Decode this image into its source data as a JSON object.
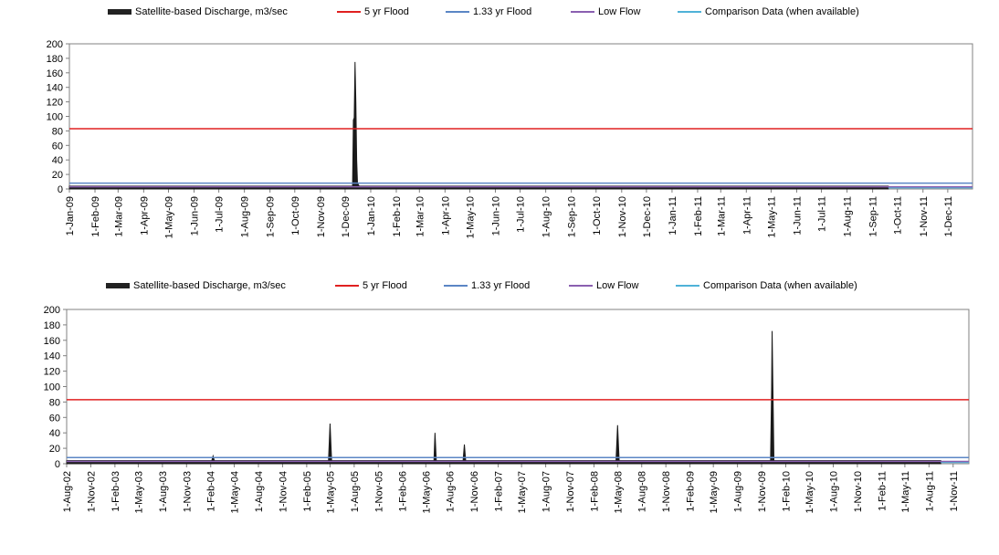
{
  "legend": {
    "discharge": "Satellite-based Discharge, m3/sec",
    "flood5": "5 yr Flood",
    "flood133": "1.33 yr Flood",
    "lowflow": "Low Flow",
    "comparison": "Comparison Data (when available)"
  },
  "colors": {
    "discharge": "#1a1a1a",
    "flood5": "#e02020",
    "flood133": "#5b86c5",
    "lowflow": "#8a5fb0",
    "comparison": "#4fb2d8",
    "axis": "#808080"
  },
  "chart_data": [
    {
      "type": "area",
      "ylim": [
        0,
        200
      ],
      "yticks": [
        0,
        20,
        40,
        60,
        80,
        100,
        120,
        140,
        160,
        180,
        200
      ],
      "categories": [
        "1-Jan-09",
        "1-Feb-09",
        "1-Mar-09",
        "1-Apr-09",
        "1-May-09",
        "1-Jun-09",
        "1-Jul-09",
        "1-Aug-09",
        "1-Sep-09",
        "1-Oct-09",
        "1-Nov-09",
        "1-Dec-09",
        "1-Jan-10",
        "1-Feb-10",
        "1-Mar-10",
        "1-Apr-10",
        "1-May-10",
        "1-Jun-10",
        "1-Jul-10",
        "1-Aug-10",
        "1-Sep-10",
        "1-Oct-10",
        "1-Nov-10",
        "1-Dec-10",
        "1-Jan-11",
        "1-Feb-11",
        "1-Mar-11",
        "1-Apr-11",
        "1-May-11",
        "1-Jun-11",
        "1-Jul-11",
        "1-Aug-11",
        "1-Sep-11",
        "1-Oct-11",
        "1-Nov-11",
        "1-Dec-11"
      ],
      "reference_lines": {
        "flood5": 83,
        "flood133": 8,
        "lowflow": 3
      },
      "series": [
        {
          "name": "Satellite-based Discharge, m3/sec",
          "x": [
            "1-Jan-09",
            "10-Dec-09",
            "11-Dec-09",
            "12-Dec-09",
            "13-Dec-09",
            "14-Dec-09",
            "15-Dec-09",
            "16-Dec-09",
            "18-Dec-09",
            "20-Sep-11"
          ],
          "y": [
            4,
            4,
            95,
            98,
            175,
            120,
            40,
            8,
            4,
            4
          ]
        },
        {
          "name": "Comparison Data (when available)",
          "x": [
            "20-Sep-11",
            "31-Dec-11"
          ],
          "y": [
            2,
            2
          ]
        }
      ]
    },
    {
      "type": "area",
      "ylim": [
        0,
        200
      ],
      "yticks": [
        0,
        20,
        40,
        60,
        80,
        100,
        120,
        140,
        160,
        180,
        200
      ],
      "categories": [
        "1-Aug-02",
        "1-Nov-02",
        "1-Feb-03",
        "1-May-03",
        "1-Aug-03",
        "1-Nov-03",
        "1-Feb-04",
        "1-May-04",
        "1-Aug-04",
        "1-Nov-04",
        "1-Feb-05",
        "1-May-05",
        "1-Aug-05",
        "1-Nov-05",
        "1-Feb-06",
        "1-May-06",
        "1-Aug-06",
        "1-Nov-06",
        "1-Feb-07",
        "1-May-07",
        "1-Aug-07",
        "1-Nov-07",
        "1-Feb-08",
        "1-May-08",
        "1-Aug-08",
        "1-Nov-08",
        "1-Feb-09",
        "1-May-09",
        "1-Aug-09",
        "1-Nov-09",
        "1-Feb-10",
        "1-May-10",
        "1-Aug-10",
        "1-Nov-10",
        "1-Feb-11",
        "1-May-11",
        "1-Aug-11",
        "1-Nov-11"
      ],
      "reference_lines": {
        "flood5": 83,
        "flood133": 8,
        "lowflow": 3
      },
      "series": [
        {
          "name": "Satellite-based Discharge, m3/sec",
          "x": [
            "1-Aug-02",
            "5-Feb-04",
            "10-Feb-04",
            "15-Feb-04",
            "25-Apr-05",
            "1-May-05",
            "7-May-05",
            "1-Jun-06",
            "5-Jun-06",
            "10-Jun-06",
            "20-Sep-06",
            "25-Sep-06",
            "30-Sep-06",
            "25-Apr-08",
            "1-May-08",
            "7-May-08",
            "5-Dec-09",
            "9-Dec-09",
            "11-Dec-09",
            "14-Dec-09",
            "18-Dec-09",
            "15-Sep-11"
          ],
          "y": [
            4,
            4,
            10,
            4,
            4,
            52,
            4,
            4,
            40,
            4,
            4,
            25,
            4,
            4,
            50,
            4,
            4,
            95,
            172,
            100,
            4,
            4
          ]
        },
        {
          "name": "Comparison Data (when available)",
          "x": [
            "15-Sep-11",
            "31-Dec-11"
          ],
          "y": [
            2,
            2
          ]
        }
      ]
    }
  ]
}
